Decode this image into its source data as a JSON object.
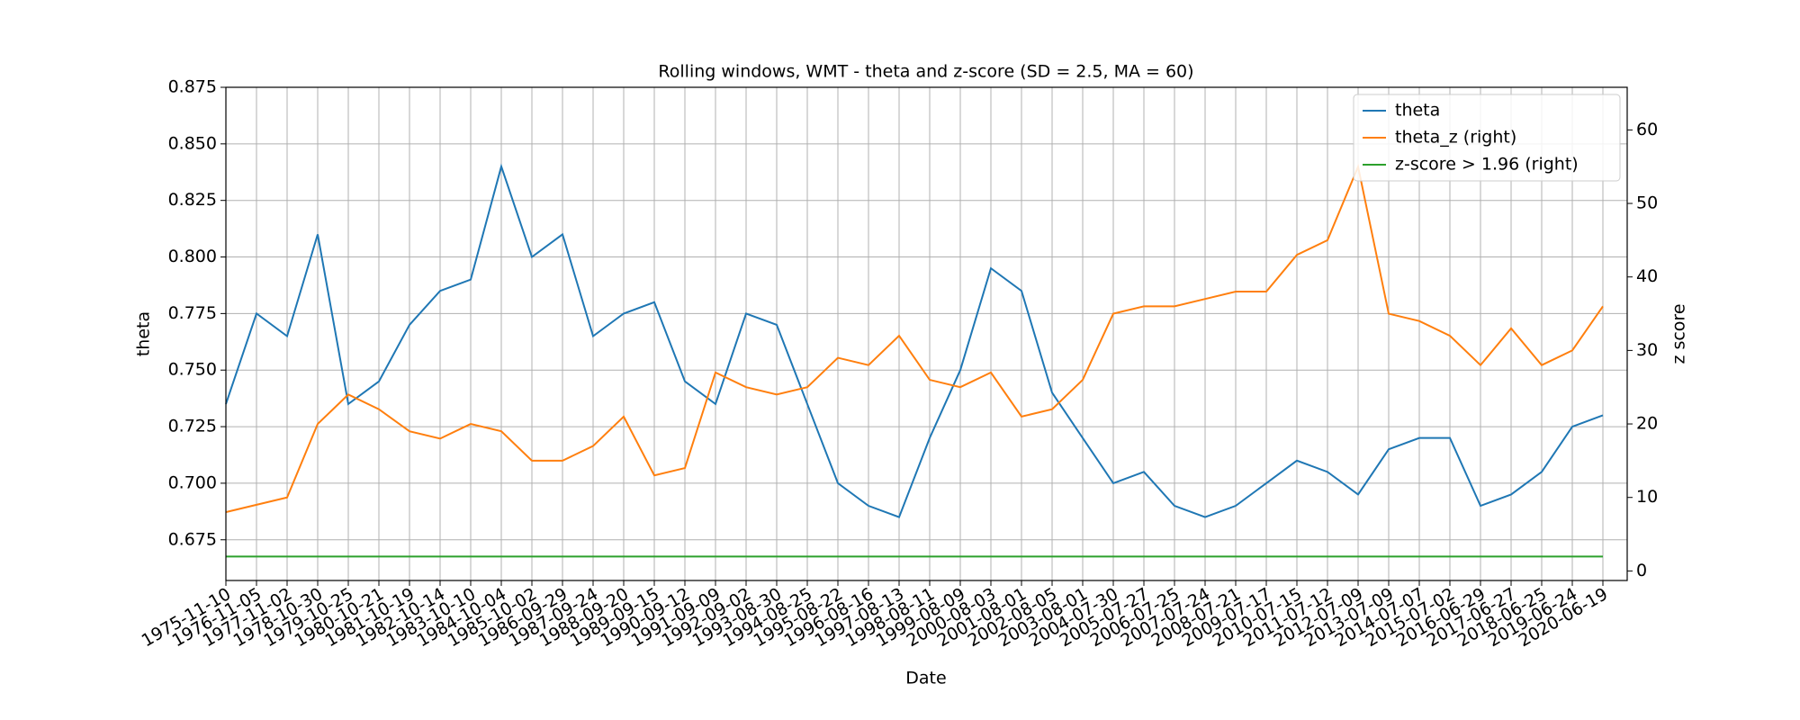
{
  "chart_data": {
    "type": "line",
    "title": "Rolling windows, WMT - theta and z-score (SD = 2.5, MA = 60)",
    "xlabel": "Date",
    "ylabel": "theta",
    "y2label": "z score",
    "x": [
      "1975-11-10",
      "1976-11-05",
      "1977-11-02",
      "1978-10-30",
      "1979-10-25",
      "1980-10-21",
      "1981-10-19",
      "1982-10-14",
      "1983-10-10",
      "1984-10-04",
      "1985-10-02",
      "1986-09-29",
      "1987-09-24",
      "1988-09-20",
      "1989-09-15",
      "1990-09-12",
      "1991-09-09",
      "1992-09-02",
      "1993-08-30",
      "1994-08-25",
      "1995-08-22",
      "1996-08-16",
      "1997-08-13",
      "1998-08-11",
      "1999-08-09",
      "2000-08-03",
      "2001-08-01",
      "2002-08-05",
      "2003-08-01",
      "2004-07-30",
      "2005-07-27",
      "2006-07-25",
      "2007-07-24",
      "2008-07-21",
      "2009-07-17",
      "2010-07-15",
      "2011-07-12",
      "2012-07-09",
      "2013-07-09",
      "2014-07-07",
      "2015-07-02",
      "2016-06-29",
      "2017-06-27",
      "2018-06-25",
      "2019-06-24",
      "2020-06-19"
    ],
    "series": [
      {
        "name": "theta",
        "color": "#1f77b4",
        "values": [
          0.735,
          0.775,
          0.765,
          0.81,
          0.735,
          0.745,
          0.77,
          0.785,
          0.79,
          0.84,
          0.8,
          0.81,
          0.765,
          0.775,
          0.78,
          0.745,
          0.735,
          0.775,
          0.77,
          0.735,
          0.7,
          0.69,
          0.685,
          0.72,
          0.75,
          0.795,
          0.785,
          0.74,
          0.72,
          0.7,
          0.705,
          0.69,
          0.685,
          0.69,
          0.7,
          0.71,
          0.705,
          0.695,
          0.715,
          0.72,
          0.72,
          0.69,
          0.695,
          0.705,
          0.725,
          0.73
        ]
      },
      {
        "name": "theta_z (right)",
        "color": "#ff7f0e",
        "axis": "y2",
        "values": [
          8,
          9,
          10,
          20,
          24,
          22,
          19,
          18,
          20,
          19,
          15,
          15,
          17,
          21,
          13,
          14,
          27,
          25,
          24,
          25,
          29,
          28,
          32,
          26,
          25,
          27,
          21,
          22,
          26,
          35,
          36,
          36,
          37,
          38,
          38,
          43,
          45,
          55,
          35,
          34,
          32,
          28,
          33,
          28,
          30,
          36
        ]
      },
      {
        "name": "z-score > 1.96 (right)",
        "color": "#2ca02c",
        "axis": "y2",
        "values": [
          1.96,
          1.96,
          1.96,
          1.96,
          1.96,
          1.96,
          1.96,
          1.96,
          1.96,
          1.96,
          1.96,
          1.96,
          1.96,
          1.96,
          1.96,
          1.96,
          1.96,
          1.96,
          1.96,
          1.96,
          1.96,
          1.96,
          1.96,
          1.96,
          1.96,
          1.96,
          1.96,
          1.96,
          1.96,
          1.96,
          1.96,
          1.96,
          1.96,
          1.96,
          1.96,
          1.96,
          1.96,
          1.96,
          1.96,
          1.96,
          1.96,
          1.96,
          1.96,
          1.96,
          1.96,
          1.96
        ]
      }
    ],
    "ylim": [
      0.657,
      0.875
    ],
    "yticks": [
      0.675,
      {
        "value": 0.7,
        "label": "0.700"
      },
      0.725,
      {
        "value": 0.75,
        "label": "0.750"
      },
      0.775,
      {
        "value": 0.8,
        "label": "0.800"
      },
      0.825,
      {
        "value": 0.85,
        "label": "0.850"
      },
      0.875
    ],
    "y2lim": [
      -1.3,
      65.8
    ],
    "y2ticks": [
      0,
      10,
      20,
      30,
      40,
      50,
      60
    ],
    "grid": true,
    "legend": "upper right"
  }
}
